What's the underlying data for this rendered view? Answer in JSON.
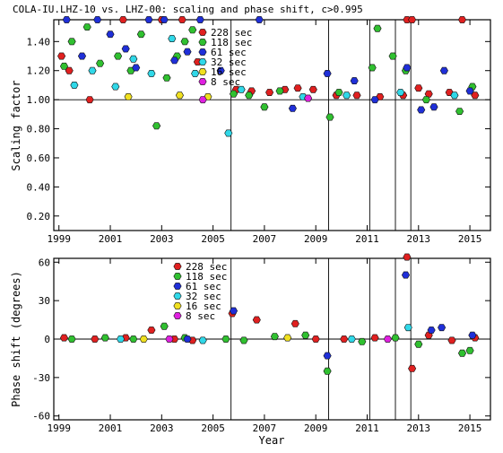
{
  "chart_data": [
    {
      "type": "scatter",
      "title": "COLA-IU.LHZ-10 vs. LHZ-00: scaling and phase shift, c>0.995",
      "xlabel": "",
      "ylabel": "Scaling factor",
      "xlim": [
        1998.8,
        2015.8
      ],
      "ylim": [
        0.1,
        1.55
      ],
      "xticks": [
        "1999",
        "2001",
        "2003",
        "2005",
        "2007",
        "2009",
        "2011",
        "2013",
        "2015"
      ],
      "yticks": [
        "0.20",
        "0.40",
        "0.60",
        "0.80",
        "1.00",
        "1.20",
        "1.40"
      ],
      "event_lines_x": [
        2005.7,
        2009.5,
        2011.1,
        2012.1,
        2012.7
      ],
      "reference_line": 1.0,
      "legend": [
        {
          "name": "228 sec",
          "color": "#e02020"
        },
        {
          "name": "118 sec",
          "color": "#30c030"
        },
        {
          "name": "61 sec",
          "color": "#1f2fd8"
        },
        {
          "name": "32 sec",
          "color": "#30d8e8"
        },
        {
          "name": "16 sec",
          "color": "#f0e020"
        },
        {
          "name": "8 sec",
          "color": "#e020e0"
        }
      ],
      "series": [
        {
          "name": "228 sec",
          "color": "#e02020",
          "points": [
            [
              1999.1,
              1.3
            ],
            [
              1999.4,
              1.2
            ],
            [
              2000.2,
              1.0
            ],
            [
              2001.5,
              1.55
            ],
            [
              2003.0,
              1.55
            ],
            [
              2003.8,
              1.55
            ],
            [
              2004.4,
              1.26
            ],
            [
              2005.9,
              1.07
            ],
            [
              2006.5,
              1.06
            ],
            [
              2007.2,
              1.05
            ],
            [
              2007.8,
              1.07
            ],
            [
              2008.3,
              1.08
            ],
            [
              2008.9,
              1.07
            ],
            [
              2009.8,
              1.03
            ],
            [
              2010.6,
              1.03
            ],
            [
              2011.5,
              1.02
            ],
            [
              2012.4,
              1.03
            ],
            [
              2012.55,
              1.55
            ],
            [
              2012.75,
              1.55
            ],
            [
              2013.0,
              1.08
            ],
            [
              2013.4,
              1.04
            ],
            [
              2014.2,
              1.05
            ],
            [
              2014.7,
              1.55
            ],
            [
              2015.2,
              1.03
            ]
          ]
        },
        {
          "name": "118 sec",
          "color": "#30c030",
          "points": [
            [
              1999.2,
              1.23
            ],
            [
              1999.5,
              1.4
            ],
            [
              2000.1,
              1.5
            ],
            [
              2000.6,
              1.25
            ],
            [
              2001.3,
              1.3
            ],
            [
              2001.8,
              1.2
            ],
            [
              2002.2,
              1.45
            ],
            [
              2002.8,
              0.82
            ],
            [
              2003.2,
              1.15
            ],
            [
              2003.6,
              1.3
            ],
            [
              2003.9,
              1.4
            ],
            [
              2004.2,
              1.48
            ],
            [
              2005.8,
              1.04
            ],
            [
              2006.4,
              1.03
            ],
            [
              2007.0,
              0.95
            ],
            [
              2007.6,
              1.06
            ],
            [
              2009.55,
              0.88
            ],
            [
              2009.9,
              1.05
            ],
            [
              2011.2,
              1.22
            ],
            [
              2011.4,
              1.49
            ],
            [
              2012.0,
              1.3
            ],
            [
              2012.5,
              1.2
            ],
            [
              2013.3,
              1.0
            ],
            [
              2014.6,
              0.92
            ],
            [
              2015.1,
              1.09
            ]
          ]
        },
        {
          "name": "61 sec",
          "color": "#1f2fd8",
          "points": [
            [
              1999.3,
              1.55
            ],
            [
              1999.9,
              1.3
            ],
            [
              2000.5,
              1.55
            ],
            [
              2001.0,
              1.45
            ],
            [
              2001.6,
              1.35
            ],
            [
              2002.0,
              1.22
            ],
            [
              2002.5,
              1.55
            ],
            [
              2003.1,
              1.55
            ],
            [
              2003.5,
              1.27
            ],
            [
              2004.0,
              1.33
            ],
            [
              2004.5,
              1.55
            ],
            [
              2005.3,
              1.2
            ],
            [
              2006.8,
              1.55
            ],
            [
              2008.1,
              0.94
            ],
            [
              2009.45,
              1.18
            ],
            [
              2010.5,
              1.13
            ],
            [
              2011.3,
              1.0
            ],
            [
              2012.55,
              1.22
            ],
            [
              2013.1,
              0.93
            ],
            [
              2013.6,
              0.95
            ],
            [
              2014.0,
              1.2
            ],
            [
              2015.0,
              1.06
            ]
          ]
        },
        {
          "name": "32 sec",
          "color": "#30d8e8",
          "points": [
            [
              1999.6,
              1.1
            ],
            [
              2000.3,
              1.2
            ],
            [
              2001.2,
              1.09
            ],
            [
              2001.9,
              1.28
            ],
            [
              2002.6,
              1.18
            ],
            [
              2003.4,
              1.42
            ],
            [
              2004.3,
              1.18
            ],
            [
              2005.6,
              0.77
            ],
            [
              2006.1,
              1.07
            ],
            [
              2008.5,
              1.02
            ],
            [
              2010.2,
              1.03
            ],
            [
              2012.3,
              1.05
            ],
            [
              2014.4,
              1.03
            ]
          ]
        },
        {
          "name": "16 sec",
          "color": "#f0e020",
          "points": [
            [
              2001.7,
              1.02
            ],
            [
              2003.7,
              1.03
            ],
            [
              2004.8,
              1.02
            ]
          ]
        },
        {
          "name": "8 sec",
          "color": "#e020e0",
          "points": [
            [
              2004.6,
              1.0
            ],
            [
              2008.7,
              1.01
            ]
          ]
        }
      ]
    },
    {
      "type": "scatter",
      "title": "",
      "xlabel": "Year",
      "ylabel": "Phase shift (degrees)",
      "xlim": [
        1998.8,
        2015.8
      ],
      "ylim": [
        -63,
        63
      ],
      "xticks": [
        "1999",
        "2001",
        "2003",
        "2005",
        "2007",
        "2009",
        "2011",
        "2013",
        "2015"
      ],
      "yticks": [
        "-60",
        "-30",
        "0",
        "30",
        "60"
      ],
      "event_lines_x": [
        2005.7,
        2009.5,
        2011.1,
        2012.1,
        2012.7
      ],
      "reference_line": 0,
      "legend": [
        {
          "name": "228 sec",
          "color": "#e02020"
        },
        {
          "name": "118 sec",
          "color": "#30c030"
        },
        {
          "name": "61 sec",
          "color": "#1f2fd8"
        },
        {
          "name": "32 sec",
          "color": "#30d8e8"
        },
        {
          "name": "16 sec",
          "color": "#f0e020"
        },
        {
          "name": "8 sec",
          "color": "#e020e0"
        }
      ],
      "series": [
        {
          "name": "228 sec",
          "color": "#e02020",
          "points": [
            [
              1999.2,
              1
            ],
            [
              2000.4,
              0
            ],
            [
              2001.6,
              1
            ],
            [
              2002.6,
              7
            ],
            [
              2003.5,
              0
            ],
            [
              2004.2,
              -1
            ],
            [
              2005.75,
              20
            ],
            [
              2006.7,
              15
            ],
            [
              2008.2,
              12
            ],
            [
              2009.0,
              0
            ],
            [
              2010.1,
              0
            ],
            [
              2011.3,
              1
            ],
            [
              2012.55,
              64
            ],
            [
              2012.75,
              -23
            ],
            [
              2013.4,
              3
            ],
            [
              2014.3,
              -1
            ],
            [
              2015.2,
              1
            ]
          ]
        },
        {
          "name": "118 sec",
          "color": "#30c030",
          "points": [
            [
              1999.5,
              0
            ],
            [
              2000.8,
              1
            ],
            [
              2001.9,
              0
            ],
            [
              2003.1,
              10
            ],
            [
              2003.9,
              1
            ],
            [
              2005.5,
              0
            ],
            [
              2006.2,
              -1
            ],
            [
              2007.4,
              2
            ],
            [
              2008.6,
              3
            ],
            [
              2009.45,
              -25
            ],
            [
              2010.8,
              -2
            ],
            [
              2012.1,
              1
            ],
            [
              2013.0,
              -4
            ],
            [
              2014.7,
              -11
            ],
            [
              2015.0,
              -9
            ]
          ]
        },
        {
          "name": "61 sec",
          "color": "#1f2fd8",
          "points": [
            [
              2004.0,
              0
            ],
            [
              2005.8,
              22
            ],
            [
              2009.45,
              -13
            ],
            [
              2012.5,
              50
            ],
            [
              2013.5,
              7
            ],
            [
              2013.9,
              9
            ],
            [
              2015.1,
              3
            ]
          ]
        },
        {
          "name": "32 sec",
          "color": "#30d8e8",
          "points": [
            [
              2001.4,
              0
            ],
            [
              2004.6,
              -1
            ],
            [
              2010.4,
              0
            ],
            [
              2012.6,
              9
            ]
          ]
        },
        {
          "name": "16 sec",
          "color": "#f0e020",
          "points": [
            [
              2002.3,
              0
            ],
            [
              2007.9,
              1
            ]
          ]
        },
        {
          "name": "8 sec",
          "color": "#e020e0",
          "points": [
            [
              2003.3,
              0
            ],
            [
              2011.8,
              0
            ]
          ]
        }
      ]
    }
  ]
}
